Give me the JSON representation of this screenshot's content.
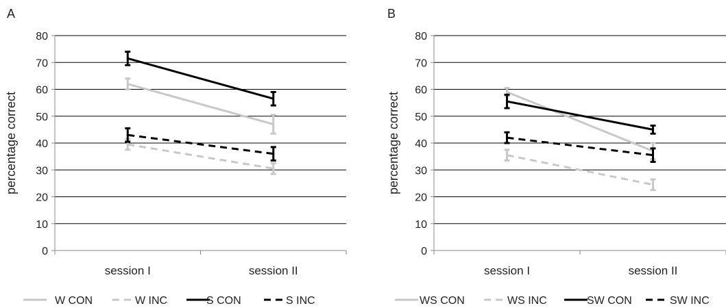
{
  "chart_data": [
    {
      "panel_label": "A",
      "type": "line",
      "categories": [
        "session I",
        "session II"
      ],
      "ylabel": "percentage correct",
      "ylim": [
        0,
        80
      ],
      "yticks": [
        0,
        10,
        20,
        30,
        40,
        50,
        60,
        70,
        80
      ],
      "grid": true,
      "legend_position": "bottom",
      "series": [
        {
          "name": "W CON",
          "values": [
            62,
            47
          ],
          "errors": [
            2,
            3.5
          ],
          "color": "#c8c8c8",
          "dash": false
        },
        {
          "name": "W INC",
          "values": [
            39.5,
            30.5
          ],
          "errors": [
            2,
            2
          ],
          "color": "#c8c8c8",
          "dash": true
        },
        {
          "name": "S CON",
          "values": [
            71.5,
            56.5
          ],
          "errors": [
            2.5,
            2.5
          ],
          "color": "#000000",
          "dash": false
        },
        {
          "name": "S INC",
          "values": [
            43,
            36
          ],
          "errors": [
            2.5,
            2.5
          ],
          "color": "#000000",
          "dash": true
        }
      ]
    },
    {
      "panel_label": "B",
      "type": "line",
      "categories": [
        "session I",
        "session II"
      ],
      "ylabel": "percentage correct",
      "ylim": [
        0,
        80
      ],
      "yticks": [
        0,
        10,
        20,
        30,
        40,
        50,
        60,
        70,
        80
      ],
      "grid": true,
      "legend_position": "bottom",
      "series": [
        {
          "name": "WS CON",
          "values": [
            59,
            37
          ],
          "errors": [
            1.5,
            3
          ],
          "color": "#c8c8c8",
          "dash": false
        },
        {
          "name": "WS INC",
          "values": [
            35.5,
            24.5
          ],
          "errors": [
            2,
            2
          ],
          "color": "#c8c8c8",
          "dash": true
        },
        {
          "name": "SW CON",
          "values": [
            55.5,
            45
          ],
          "errors": [
            2.5,
            1.5
          ],
          "color": "#000000",
          "dash": false
        },
        {
          "name": "SW INC",
          "values": [
            42,
            35.5
          ],
          "errors": [
            2,
            2.5
          ],
          "color": "#000000",
          "dash": true
        }
      ]
    }
  ]
}
